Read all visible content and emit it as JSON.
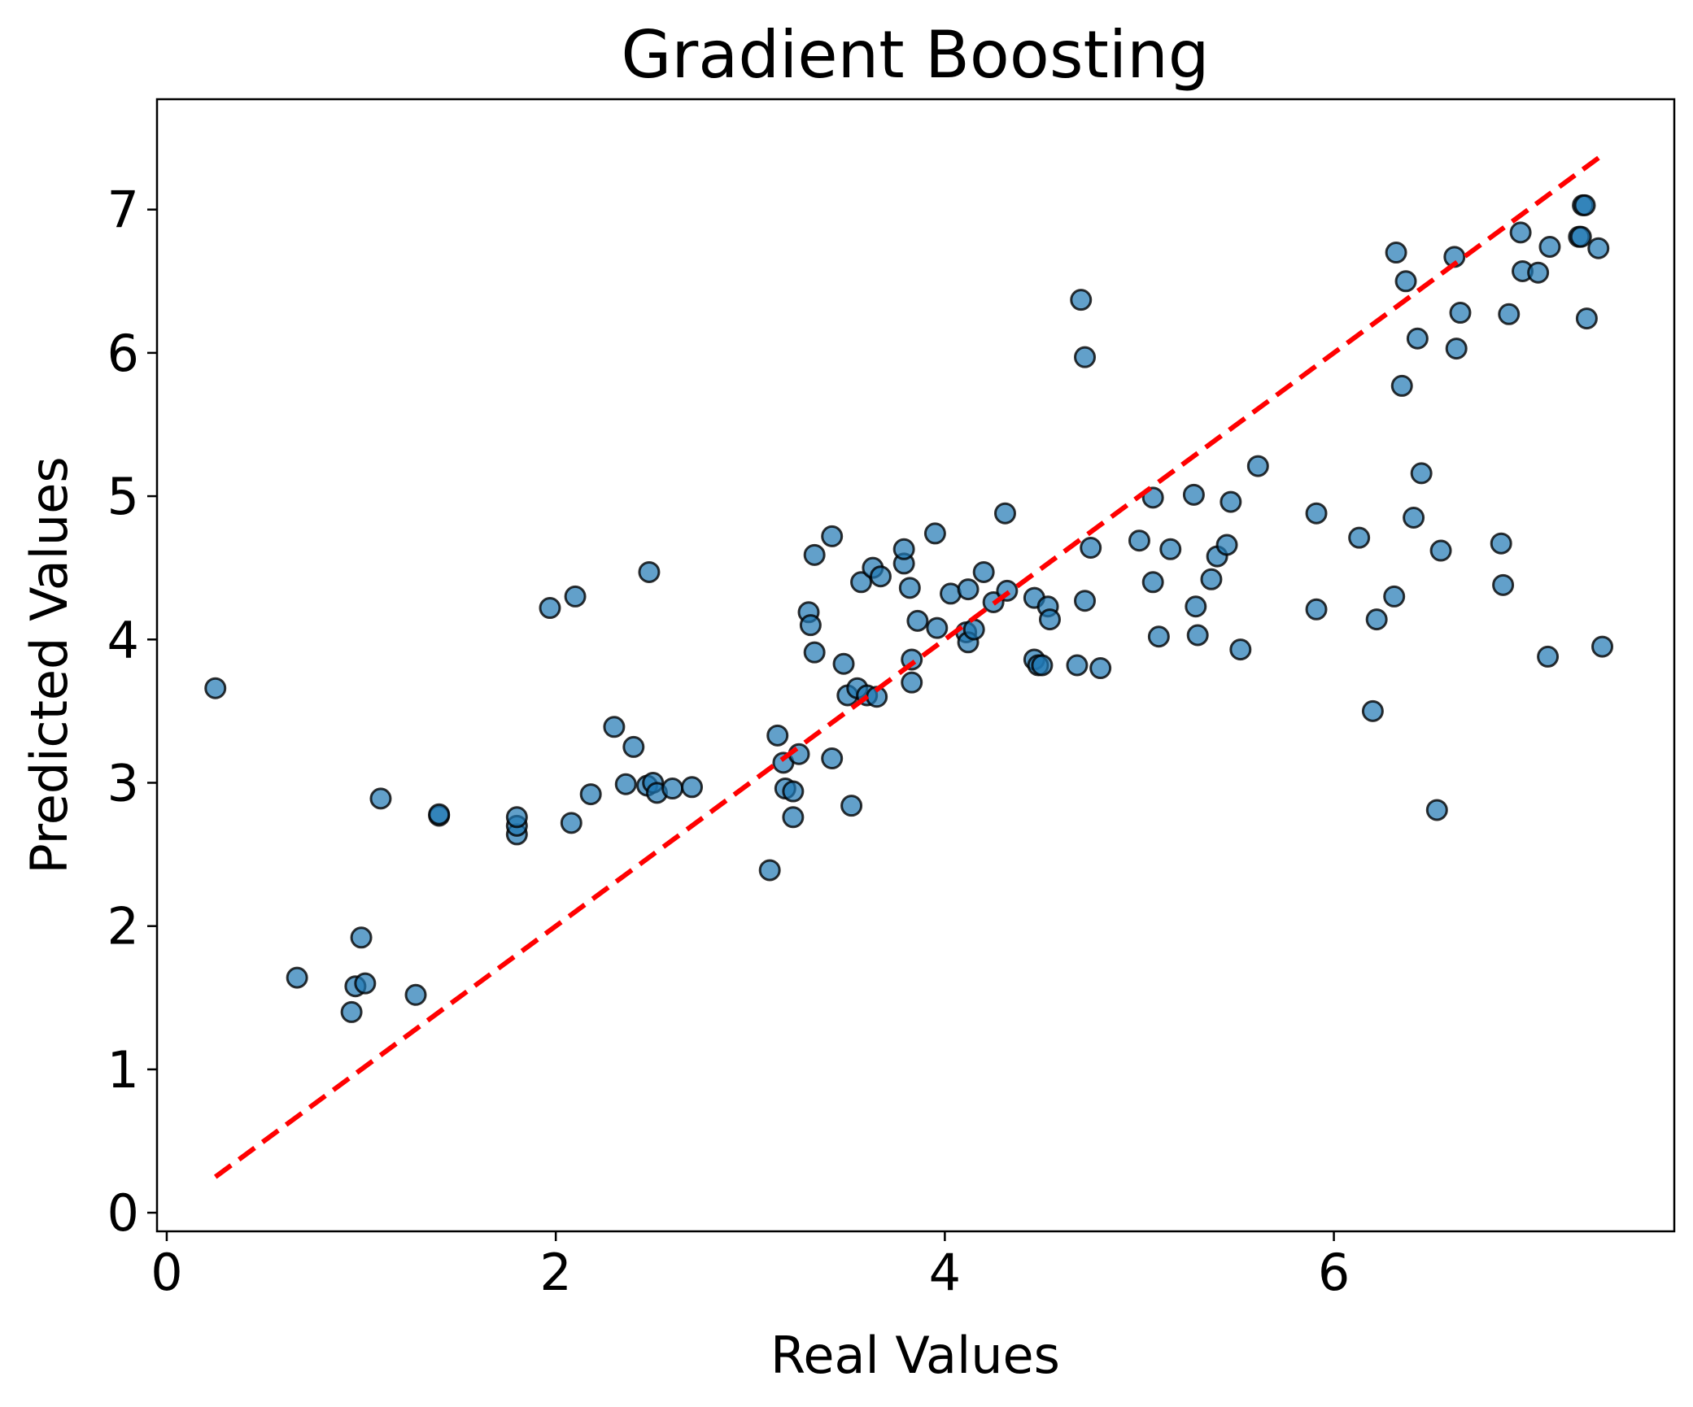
{
  "chart_data": {
    "type": "scatter",
    "title": "Gradient Boosting",
    "xlabel": "Real Values",
    "ylabel": "Predicted Values",
    "xlim": [
      -0.05,
      7.75
    ],
    "ylim": [
      -0.13,
      7.77
    ],
    "xticks": [
      0,
      2,
      4,
      6
    ],
    "yticks": [
      0,
      1,
      2,
      3,
      4,
      5,
      6,
      7
    ],
    "grid": false,
    "point_color": "#1f77b4",
    "point_edge_color": "#000000",
    "reference_line": {
      "x": [
        0.25,
        7.4
      ],
      "y": [
        0.25,
        7.4
      ],
      "color": "#ff0000",
      "style": "dashed"
    },
    "points": [
      [
        0.25,
        3.66
      ],
      [
        0.67,
        1.64
      ],
      [
        0.95,
        1.4
      ],
      [
        0.97,
        1.58
      ],
      [
        1.0,
        1.92
      ],
      [
        1.02,
        1.6
      ],
      [
        1.1,
        2.89
      ],
      [
        1.28,
        1.52
      ],
      [
        1.4,
        2.77
      ],
      [
        1.4,
        2.78
      ],
      [
        1.8,
        2.64
      ],
      [
        1.8,
        2.7
      ],
      [
        1.8,
        2.76
      ],
      [
        1.97,
        4.22
      ],
      [
        2.08,
        2.72
      ],
      [
        2.1,
        4.3
      ],
      [
        2.18,
        2.92
      ],
      [
        2.3,
        3.39
      ],
      [
        2.36,
        2.99
      ],
      [
        2.4,
        3.25
      ],
      [
        2.47,
        2.98
      ],
      [
        2.5,
        3.0
      ],
      [
        2.52,
        2.93
      ],
      [
        2.48,
        4.47
      ],
      [
        2.6,
        2.96
      ],
      [
        2.7,
        2.97
      ],
      [
        3.1,
        2.39
      ],
      [
        3.14,
        3.33
      ],
      [
        3.17,
        3.14
      ],
      [
        3.18,
        2.96
      ],
      [
        3.22,
        2.94
      ],
      [
        3.22,
        2.76
      ],
      [
        3.25,
        3.2
      ],
      [
        3.3,
        4.19
      ],
      [
        3.31,
        4.1
      ],
      [
        3.33,
        3.91
      ],
      [
        3.33,
        4.59
      ],
      [
        3.42,
        3.17
      ],
      [
        3.42,
        4.72
      ],
      [
        3.48,
        3.83
      ],
      [
        3.5,
        3.61
      ],
      [
        3.52,
        2.84
      ],
      [
        3.55,
        3.66
      ],
      [
        3.57,
        4.4
      ],
      [
        3.6,
        3.61
      ],
      [
        3.63,
        4.5
      ],
      [
        3.65,
        3.6
      ],
      [
        3.67,
        4.44
      ],
      [
        3.79,
        4.53
      ],
      [
        3.79,
        4.63
      ],
      [
        3.82,
        4.36
      ],
      [
        3.83,
        3.86
      ],
      [
        3.83,
        3.7
      ],
      [
        3.86,
        4.13
      ],
      [
        3.95,
        4.74
      ],
      [
        3.96,
        4.08
      ],
      [
        4.03,
        4.32
      ],
      [
        4.11,
        4.05
      ],
      [
        4.12,
        4.35
      ],
      [
        4.12,
        3.98
      ],
      [
        4.15,
        4.07
      ],
      [
        4.2,
        4.47
      ],
      [
        4.25,
        4.26
      ],
      [
        4.31,
        4.88
      ],
      [
        4.32,
        4.34
      ],
      [
        4.46,
        3.86
      ],
      [
        4.46,
        4.29
      ],
      [
        4.48,
        3.82
      ],
      [
        4.5,
        3.82
      ],
      [
        4.53,
        4.23
      ],
      [
        4.54,
        4.14
      ],
      [
        4.68,
        3.82
      ],
      [
        4.7,
        6.37
      ],
      [
        4.72,
        5.97
      ],
      [
        4.72,
        4.27
      ],
      [
        4.75,
        4.64
      ],
      [
        4.8,
        3.8
      ],
      [
        5.0,
        4.69
      ],
      [
        5.07,
        4.99
      ],
      [
        5.07,
        4.4
      ],
      [
        5.1,
        4.02
      ],
      [
        5.16,
        4.63
      ],
      [
        5.28,
        5.01
      ],
      [
        5.29,
        4.23
      ],
      [
        5.3,
        4.03
      ],
      [
        5.37,
        4.42
      ],
      [
        5.4,
        4.58
      ],
      [
        5.45,
        4.66
      ],
      [
        5.47,
        4.96
      ],
      [
        5.52,
        3.93
      ],
      [
        5.61,
        5.21
      ],
      [
        5.91,
        4.88
      ],
      [
        5.91,
        4.21
      ],
      [
        6.13,
        4.71
      ],
      [
        6.2,
        3.5
      ],
      [
        6.22,
        4.14
      ],
      [
        6.31,
        4.3
      ],
      [
        6.32,
        6.7
      ],
      [
        6.35,
        5.77
      ],
      [
        6.37,
        6.5
      ],
      [
        6.41,
        4.85
      ],
      [
        6.43,
        6.1
      ],
      [
        6.45,
        5.16
      ],
      [
        6.53,
        2.81
      ],
      [
        6.55,
        4.62
      ],
      [
        6.62,
        6.67
      ],
      [
        6.63,
        6.03
      ],
      [
        6.65,
        6.28
      ],
      [
        6.86,
        4.67
      ],
      [
        6.87,
        4.38
      ],
      [
        6.9,
        6.27
      ],
      [
        6.96,
        6.84
      ],
      [
        6.97,
        6.57
      ],
      [
        7.05,
        6.56
      ],
      [
        7.1,
        3.88
      ],
      [
        7.11,
        6.74
      ],
      [
        7.26,
        6.81
      ],
      [
        7.27,
        6.81
      ],
      [
        7.28,
        7.03
      ],
      [
        7.29,
        7.03
      ],
      [
        7.3,
        6.24
      ],
      [
        7.36,
        6.73
      ],
      [
        7.38,
        3.95
      ]
    ]
  }
}
